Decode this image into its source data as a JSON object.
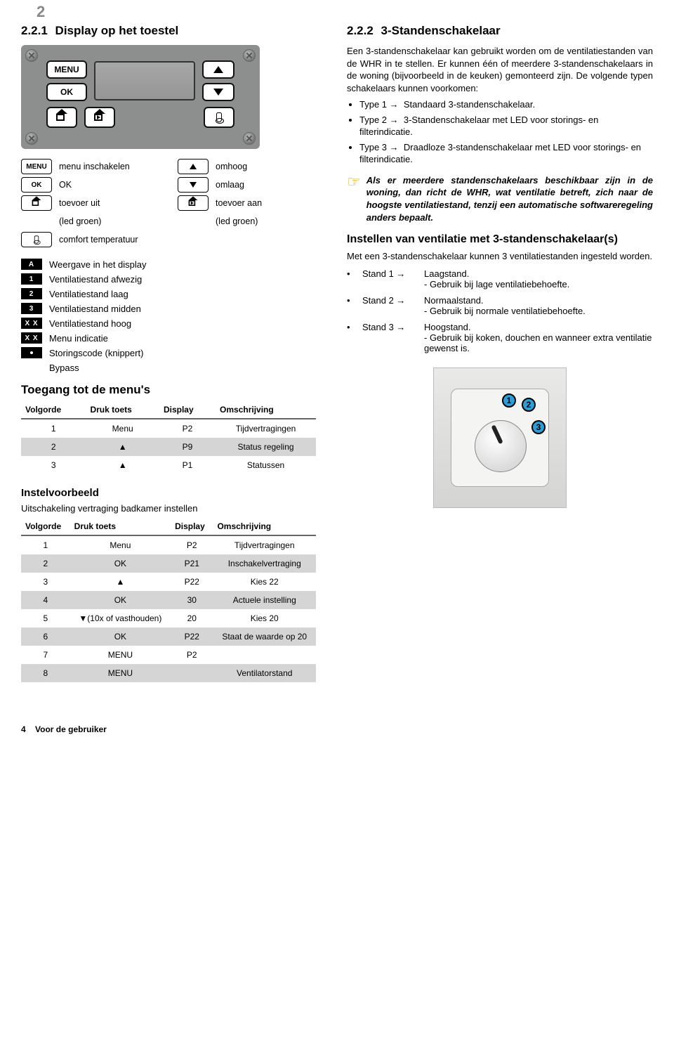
{
  "page": {
    "chapter_num": "2",
    "footer_page": "4",
    "footer_text": "Voor de gebruiker"
  },
  "left": {
    "heading_num": "2.2.1",
    "heading": "Display op  het toestel",
    "device_buttons": {
      "menu": "MENU",
      "ok": "OK"
    },
    "legend": {
      "menu": "MENU",
      "menu_txt": "menu inschakelen",
      "ok": "OK",
      "ok_txt": "OK",
      "up_txt": "omhoog",
      "down_txt": "omlaag",
      "house_out_txt": "toevoer uit",
      "house_out_sub": "(led groen)",
      "house_in_txt": "toevoer aan",
      "house_in_sub": "(led groen)",
      "thermo_txt": "comfort temperatuur"
    },
    "blist": [
      {
        "tag": "A",
        "txt": "Weergave in het display"
      },
      {
        "tag": "1",
        "txt": "Ventilatiestand afwezig"
      },
      {
        "tag": "2",
        "txt": "Ventilatiestand laag"
      },
      {
        "tag": "3",
        "txt": "Ventilatiestand midden"
      },
      {
        "tag": "X  X",
        "txt": "Ventilatiestand hoog"
      },
      {
        "tag": "X  X",
        "txt": "Menu indicatie"
      },
      {
        "tag": "·",
        "txt": "Storingscode (knippert)"
      },
      {
        "tag": "",
        "txt": "Bypass"
      }
    ],
    "menus_heading": "Toegang tot de menu's",
    "table1": {
      "cols": [
        "Volgorde",
        "Druk toets",
        "Display",
        "Omschrijving"
      ],
      "rows": [
        {
          "c": [
            "1",
            "Menu",
            "P2",
            "Tijdvertragingen"
          ],
          "shade": false
        },
        {
          "c": [
            "2",
            "▲",
            "P9",
            "Status regeling"
          ],
          "shade": true
        },
        {
          "c": [
            "3",
            "▲",
            "P1",
            "Statussen"
          ],
          "shade": false
        }
      ]
    },
    "example_h": "Instelvoorbeeld",
    "example_sub": "Uitschakeling vertraging badkamer instellen",
    "table2": {
      "cols": [
        "Volgorde",
        "Druk toets",
        "Display",
        "Omschrijving"
      ],
      "rows": [
        {
          "c": [
            "1",
            "Menu",
            "P2",
            "Tijdvertragingen"
          ],
          "shade": false
        },
        {
          "c": [
            "2",
            "OK",
            "P21",
            "Inschakelvertraging"
          ],
          "shade": true
        },
        {
          "c": [
            "3",
            "▲",
            "P22",
            "Kies 22"
          ],
          "shade": false
        },
        {
          "c": [
            "4",
            "OK",
            "30",
            "Actuele instelling"
          ],
          "shade": true
        },
        {
          "c": [
            "5",
            "▼(10x of vasthouden)",
            "20",
            "Kies 20"
          ],
          "shade": false
        },
        {
          "c": [
            "6",
            "OK",
            "P22",
            "Staat de waarde op 20"
          ],
          "shade": true
        },
        {
          "c": [
            "7",
            "MENU",
            "P2",
            ""
          ],
          "shade": false
        },
        {
          "c": [
            "8",
            "MENU",
            "",
            "Ventilatorstand"
          ],
          "shade": true
        }
      ]
    }
  },
  "right": {
    "heading_num": "2.2.2",
    "heading": "3-Standenschakelaar",
    "intro": "Een 3-standenschakelaar kan gebruikt worden om de ventilatiestanden van de WHR in te stellen. Er kunnen één of meerdere 3-standenschakelaars in de woning (bijvoorbeeld in de keuken) gemonteerd zijn. De volgende typen schakelaars kunnen voorkomen:",
    "types": [
      {
        "l": "Type 1 →",
        "t": "Standaard 3-standenschakelaar."
      },
      {
        "l": "Type 2 →",
        "t": "3-Standenschakelaar met LED voor storings- en filterindicatie."
      },
      {
        "l": "Type 3 →",
        "t": "Draadloze 3-standenschakelaar met LED voor storings- en filterindicatie."
      }
    ],
    "note": "Als er meerdere standenschakelaars beschikbaar zijn in de woning, dan richt de WHR, wat ventilatie betreft, zich naar de hoogste ventilatiestand, tenzij een automatische softwareregeling anders bepaalt.",
    "sub_h": "Instellen van ventilatie met 3-standenschakelaar(s)",
    "sub_p": "Met een 3-standenschakelaar kunnen 3 ventilatiestanden ingesteld worden.",
    "stands": [
      {
        "l": "Stand 1 →",
        "name": "Laagstand.",
        "d": "- Gebruik bij lage ventilatiebehoefte."
      },
      {
        "l": "Stand 2 →",
        "name": "Normaalstand.",
        "d": "- Gebruik bij normale ventilatiebehoefte."
      },
      {
        "l": "Stand 3 →",
        "name": "Hoogstand.",
        "d": "- Gebruik bij koken, douchen en wanneer extra ventilatie gewenst is."
      }
    ],
    "dial": {
      "n1": "1",
      "n2": "2",
      "n3": "3"
    }
  }
}
